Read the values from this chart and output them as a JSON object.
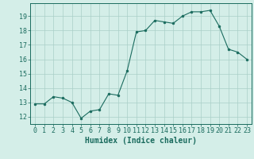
{
  "x": [
    0,
    1,
    2,
    3,
    4,
    5,
    6,
    7,
    8,
    9,
    10,
    11,
    12,
    13,
    14,
    15,
    16,
    17,
    18,
    19,
    20,
    21,
    22,
    23
  ],
  "y": [
    12.9,
    12.9,
    13.4,
    13.3,
    13.0,
    11.9,
    12.4,
    12.5,
    13.6,
    13.5,
    15.2,
    17.9,
    18.0,
    18.7,
    18.6,
    18.5,
    19.0,
    19.3,
    19.3,
    19.4,
    18.3,
    16.7,
    16.5,
    16.0
  ],
  "line_color": "#1a6b5e",
  "marker_color": "#1a6b5e",
  "bg_color": "#d4eee8",
  "grid_color": "#aacfc8",
  "xlabel": "Humidex (Indice chaleur)",
  "ylim": [
    11.5,
    19.9
  ],
  "yticks": [
    12,
    13,
    14,
    15,
    16,
    17,
    18,
    19
  ],
  "xlim": [
    -0.5,
    23.5
  ],
  "axis_color": "#1a6b5e",
  "tick_color": "#1a6b5e",
  "label_color": "#1a6b5e",
  "font_size": 6.0
}
